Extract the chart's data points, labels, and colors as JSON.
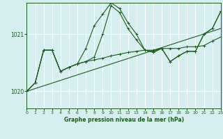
{
  "title": "Graphe pression niveau de la mer (hPa)",
  "bg_color": "#d6eef0",
  "grid_color": "#ffffff",
  "line_color": "#1a5c1a",
  "xmin": 0,
  "xmax": 23,
  "ymin": 1019.7,
  "ymax": 1021.55,
  "yticks": [
    1020,
    1021
  ],
  "xticks": [
    0,
    1,
    2,
    3,
    4,
    5,
    6,
    7,
    8,
    9,
    10,
    11,
    12,
    13,
    14,
    15,
    16,
    17,
    18,
    19,
    20,
    21,
    22,
    23
  ],
  "trend_x": [
    0,
    23
  ],
  "trend_y": [
    1020.0,
    1021.1
  ],
  "series1_x": [
    0,
    1,
    2,
    3,
    4,
    5,
    6,
    7,
    8,
    9,
    10,
    11,
    12,
    13,
    14,
    15,
    16,
    17,
    18,
    19,
    20,
    21,
    22,
    23
  ],
  "series1_y": [
    1020.0,
    1020.15,
    1020.72,
    1020.72,
    1020.35,
    1020.42,
    1020.48,
    1020.52,
    1020.55,
    1020.58,
    1020.62,
    1020.65,
    1020.68,
    1020.7,
    1020.72,
    1020.72,
    1020.75,
    1020.75,
    1020.75,
    1020.78,
    1020.78,
    1020.8,
    1020.88,
    1020.95
  ],
  "series2_x": [
    0,
    1,
    2,
    3,
    4,
    5,
    6,
    7,
    8,
    9,
    10,
    11,
    12,
    13,
    14,
    15,
    16,
    17,
    18,
    19,
    20,
    21,
    22,
    23
  ],
  "series2_y": [
    1020.0,
    1020.15,
    1020.72,
    1020.72,
    1020.35,
    1020.42,
    1020.48,
    1020.75,
    1021.15,
    1021.35,
    1021.55,
    1021.45,
    1021.2,
    1021.0,
    1020.72,
    1020.7,
    1020.75,
    1020.52,
    1020.62,
    1020.7,
    1020.7,
    1021.0,
    1021.1,
    1021.4
  ],
  "series3_x": [
    0,
    1,
    2,
    3,
    4,
    5,
    6,
    7,
    8,
    9,
    10,
    11,
    12,
    13,
    14,
    15,
    16,
    17,
    18,
    19,
    20,
    21,
    22,
    23
  ],
  "series3_y": [
    1020.0,
    1020.15,
    1020.72,
    1020.72,
    1020.35,
    1020.42,
    1020.48,
    1020.52,
    1020.6,
    1021.0,
    1021.5,
    1021.38,
    1021.1,
    1020.9,
    1020.72,
    1020.68,
    1020.75,
    1020.52,
    1020.62,
    1020.7,
    1020.7,
    1021.0,
    1021.1,
    1021.4
  ]
}
